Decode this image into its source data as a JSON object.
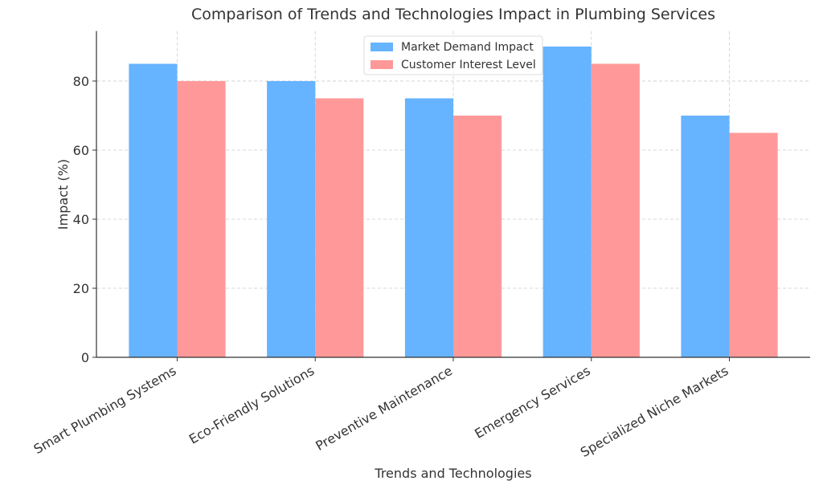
{
  "chart_data": {
    "type": "bar",
    "title": "Comparison of Trends and Technologies Impact in Plumbing Services",
    "x_label": "Trends and Technologies",
    "y_label": "Impact (%)",
    "categories": [
      "Smart Plumbing Systems",
      "Eco-Friendly Solutions",
      "Preventive Maintenance",
      "Emergency Services",
      "Specialized Niche Markets"
    ],
    "series": [
      {
        "name": "Market Demand Impact",
        "color": "#66b3ff",
        "values": [
          85,
          80,
          75,
          90,
          70
        ]
      },
      {
        "name": "Customer Interest Level",
        "color": "#ff9999",
        "values": [
          80,
          75,
          70,
          85,
          65
        ]
      }
    ],
    "ylim": [
      0,
      94.5
    ],
    "yticks": [
      0,
      20,
      40,
      60,
      80
    ],
    "grid": true,
    "legend": "upper center"
  }
}
